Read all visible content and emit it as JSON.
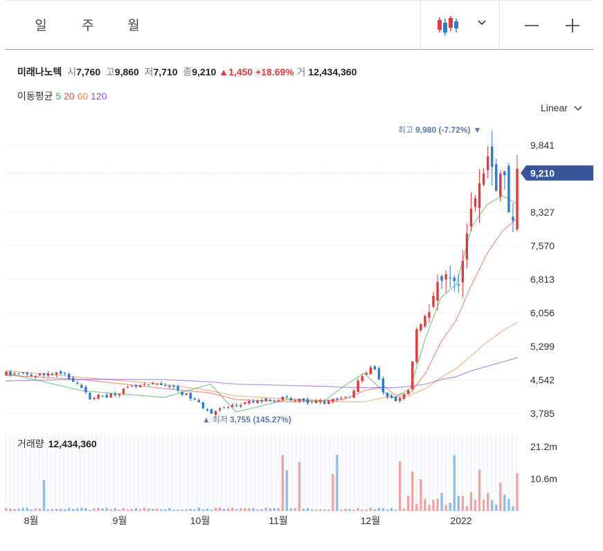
{
  "toolbar": {
    "periods": [
      {
        "label": "일",
        "active": true
      },
      {
        "label": "주",
        "active": false
      },
      {
        "label": "월",
        "active": false
      }
    ],
    "chart_type_icon": "candlestick-icon",
    "dropdown_icon": "chevron-down-icon",
    "zoom_out_icon": "minus-icon",
    "zoom_in_icon": "plus-icon"
  },
  "stock": {
    "name": "미래나노텍",
    "open_label": "시",
    "open": "7,760",
    "high_label": "고",
    "high": "9,860",
    "low_label": "저",
    "low": "7,710",
    "close_label": "종",
    "close": "9,210",
    "change": "▲1,450",
    "change_pct": "+18.69%",
    "volume_label": "거",
    "volume": "12,434,360"
  },
  "moving_average": {
    "label": "이동평균",
    "periods": [
      {
        "value": "5",
        "color": "#35b24a"
      },
      {
        "value": "20",
        "color": "#e84d4d"
      },
      {
        "value": "60",
        "color": "#f08a3c"
      },
      {
        "value": "120",
        "color": "#8a4ee0"
      }
    ]
  },
  "scale_selector": {
    "label": "Linear"
  },
  "colors": {
    "up": "#e03a3a",
    "down": "#2b7bd6",
    "accent": "#3a569a"
  },
  "chart_data": {
    "type": "candlestick",
    "y_ticks": [
      "9,841",
      "8,327",
      "7,570",
      "6,813",
      "6,056",
      "5,299",
      "4,542",
      "3,785"
    ],
    "y_tick_values": [
      9841,
      8327,
      7570,
      6813,
      6056,
      5299,
      4542,
      3785
    ],
    "x_ticks": [
      "8월",
      "9월",
      "10월",
      "11월",
      "12월",
      "2022"
    ],
    "ylim": [
      3570,
      10150
    ],
    "current_price_label": "9,210",
    "current_price": 9210,
    "high_marker": {
      "label": "최고",
      "value_text": "9,980 (-7.72%)",
      "value": 9980
    },
    "low_marker": {
      "label": "최저",
      "value_text": "3,755 (145.27%)",
      "value": 3755
    },
    "volume_label": "거래량",
    "volume_value": "12,434,360",
    "volume_ticks": [
      "21.2m",
      "10.6m"
    ],
    "volume_tick_values": [
      21200000,
      10600000
    ],
    "ma_series": [
      {
        "name": "5",
        "color": "#35b24a",
        "x": [
          0,
          0.15,
          0.31,
          0.4,
          0.45,
          0.55,
          0.62,
          0.66,
          0.7,
          0.74,
          0.76,
          0.79,
          0.82,
          0.85,
          0.88,
          0.91,
          0.94,
          0.97,
          1.0
        ],
        "values": [
          4700,
          4300,
          4150,
          4450,
          3820,
          4100,
          4050,
          4400,
          4700,
          4250,
          4150,
          4350,
          5500,
          6400,
          6700,
          8000,
          8500,
          8700,
          8500
        ]
      },
      {
        "name": "20",
        "color": "#e84d4d",
        "x": [
          0,
          0.15,
          0.31,
          0.4,
          0.45,
          0.55,
          0.62,
          0.66,
          0.7,
          0.74,
          0.76,
          0.79,
          0.82,
          0.85,
          0.88,
          0.91,
          0.94,
          0.97,
          1.0
        ],
        "values": [
          4650,
          4550,
          4350,
          4250,
          4100,
          4050,
          4080,
          4100,
          4300,
          4400,
          4200,
          4250,
          4700,
          5400,
          5900,
          6700,
          7400,
          7900,
          8200
        ]
      },
      {
        "name": "60",
        "color": "#f08a3c",
        "x": [
          0,
          0.15,
          0.31,
          0.4,
          0.45,
          0.55,
          0.62,
          0.66,
          0.7,
          0.74,
          0.76,
          0.79,
          0.82,
          0.85,
          0.88,
          0.91,
          0.94,
          0.97,
          1.0
        ],
        "values": [
          4750,
          4600,
          4450,
          4300,
          4180,
          4120,
          4080,
          4050,
          4050,
          4150,
          4150,
          4200,
          4350,
          4600,
          4800,
          5100,
          5400,
          5650,
          5850
        ]
      },
      {
        "name": "120",
        "color": "#8a4ee0",
        "x": [
          0,
          0.15,
          0.31,
          0.4,
          0.45,
          0.55,
          0.62,
          0.66,
          0.7,
          0.74,
          0.76,
          0.79,
          0.82,
          0.85,
          0.88,
          0.91,
          0.94,
          0.97,
          1.0
        ],
        "values": [
          4520,
          4560,
          4550,
          4500,
          4450,
          4420,
          4400,
          4380,
          4370,
          4370,
          4370,
          4400,
          4450,
          4550,
          4620,
          4750,
          4850,
          4950,
          5050
        ]
      }
    ]
  }
}
